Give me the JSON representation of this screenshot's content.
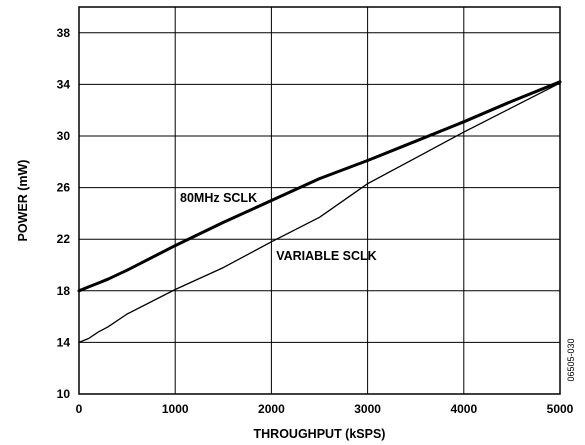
{
  "chart_data": {
    "type": "line",
    "title": "",
    "xlabel": "THROUGHPUT (kSPS)",
    "ylabel": "POWER (mW)",
    "xlim": [
      0,
      5000
    ],
    "ylim": [
      10,
      40
    ],
    "xticks": [
      0,
      1000,
      2000,
      3000,
      4000,
      5000
    ],
    "yticks": [
      10,
      14,
      18,
      22,
      26,
      30,
      34,
      38
    ],
    "grid": true,
    "legend": "none",
    "series": [
      {
        "name": "80MHz SCLK",
        "stroke": "#000000",
        "thickness": "thick",
        "x": [
          0,
          100,
          200,
          300,
          500,
          1000,
          1500,
          2000,
          2500,
          3000,
          3500,
          4000,
          4500,
          5000
        ],
        "y": [
          18.0,
          18.3,
          18.6,
          18.9,
          19.6,
          21.5,
          23.3,
          25.0,
          26.7,
          28.1,
          29.6,
          31.1,
          32.7,
          34.2
        ]
      },
      {
        "name": "VARIABLE SCLK",
        "stroke": "#000000",
        "thickness": "thin",
        "x": [
          0,
          100,
          200,
          300,
          500,
          1000,
          1500,
          2000,
          2500,
          3000,
          3500,
          4000,
          4500,
          5000
        ],
        "y": [
          14.0,
          14.3,
          14.8,
          15.2,
          16.2,
          18.1,
          19.8,
          21.8,
          23.7,
          26.3,
          28.3,
          30.3,
          32.2,
          34.1
        ]
      }
    ],
    "annotations": [
      {
        "text": "80MHz SCLK",
        "x": 1050,
        "y": 24.9
      },
      {
        "text": "VARIABLE SCLK",
        "x": 2050,
        "y": 20.4
      }
    ],
    "figure_id": "06505-030"
  }
}
